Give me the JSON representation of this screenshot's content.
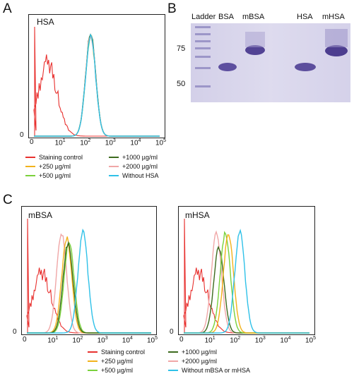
{
  "panels": {
    "A": {
      "letter": "A",
      "title": "HSA",
      "y_zero": "0",
      "x_ticks": [
        "0",
        "10",
        "10",
        "10",
        "10",
        "10"
      ],
      "x_tick_exps": [
        "",
        "1",
        "2",
        "3",
        "4",
        "5"
      ],
      "legend": [
        {
          "label": "Staining control",
          "color": "#e8312f"
        },
        {
          "label": "+1000 µg/ml",
          "color": "#3d6b1e"
        },
        {
          "label": "+250 µg/ml",
          "color": "#f2b21b"
        },
        {
          "label": "+2000 µg/ml",
          "color": "#f0a7a7"
        },
        {
          "label": "+500 µg/ml",
          "color": "#7ad13c"
        },
        {
          "label": "Without HSA",
          "color": "#2fc1e8"
        }
      ]
    },
    "B": {
      "letter": "B",
      "lane_labels": [
        "Ladder",
        "BSA",
        "mBSA",
        "HSA",
        "mHSA"
      ],
      "mw_markers": [
        "75",
        "50"
      ]
    },
    "C": {
      "letter": "C",
      "left_title": "mBSA",
      "right_title": "mHSA",
      "y_zero": "0",
      "x_ticks": [
        "0",
        "10",
        "10",
        "10",
        "10",
        "10"
      ],
      "x_tick_exps": [
        "",
        "1",
        "2",
        "3",
        "4",
        "5"
      ],
      "legend": [
        {
          "label": "Staining control",
          "color": "#e8312f"
        },
        {
          "label": "+1000 µg/ml",
          "color": "#3d6b1e"
        },
        {
          "label": "+250 µg/ml",
          "color": "#f2b21b"
        },
        {
          "label": "+2000 µg/ml",
          "color": "#f0a7a7"
        },
        {
          "label": "+500 µg/ml",
          "color": "#7ad13c"
        },
        {
          "label": "Without mBSA or mHSA",
          "color": "#2fc1e8"
        }
      ]
    }
  },
  "chart_data": [
    {
      "type": "line",
      "panel": "A",
      "title": "HSA",
      "xscale": "log",
      "xlim": [
        1,
        100000
      ],
      "series": [
        {
          "name": "Staining control",
          "color": "#e8312f",
          "peak_x": 3.5,
          "rel_height": 0.7
        },
        {
          "name": "+250 µg/ml",
          "color": "#f2b21b",
          "peak_x": 180,
          "rel_height": 0.98
        },
        {
          "name": "+500 µg/ml",
          "color": "#7ad13c",
          "peak_x": 180,
          "rel_height": 0.98
        },
        {
          "name": "+1000 µg/ml",
          "color": "#3d6b1e",
          "peak_x": 180,
          "rel_height": 1.0
        },
        {
          "name": "+2000 µg/ml",
          "color": "#f0a7a7",
          "peak_x": 180,
          "rel_height": 0.98
        },
        {
          "name": "Without HSA",
          "color": "#2fc1e8",
          "peak_x": 180,
          "rel_height": 0.97
        }
      ]
    },
    {
      "type": "line",
      "panel": "C-left",
      "title": "mBSA",
      "xscale": "log",
      "xlim": [
        1,
        100000
      ],
      "series": [
        {
          "name": "Staining control",
          "color": "#e8312f",
          "peak_x": 4,
          "rel_height": 0.55
        },
        {
          "name": "+2000 µg/ml",
          "color": "#f0a7a7",
          "peak_x": 25,
          "rel_height": 0.93
        },
        {
          "name": "+250 µg/ml",
          "color": "#f2b21b",
          "peak_x": 40,
          "rel_height": 0.88
        },
        {
          "name": "+500 µg/ml",
          "color": "#7ad13c",
          "peak_x": 50,
          "rel_height": 0.85
        },
        {
          "name": "+1000 µg/ml",
          "color": "#3d6b1e",
          "peak_x": 45,
          "rel_height": 0.83
        },
        {
          "name": "Without mBSA or mHSA",
          "color": "#2fc1e8",
          "peak_x": 180,
          "rel_height": 0.94
        }
      ]
    },
    {
      "type": "line",
      "panel": "C-right",
      "title": "mHSA",
      "xscale": "log",
      "xlim": [
        1,
        100000
      ],
      "series": [
        {
          "name": "Staining control",
          "color": "#e8312f",
          "peak_x": 4,
          "rel_height": 0.55
        },
        {
          "name": "+2000 µg/ml",
          "color": "#f0a7a7",
          "peak_x": 20,
          "rel_height": 0.93
        },
        {
          "name": "+1000 µg/ml",
          "color": "#3d6b1e",
          "peak_x": 25,
          "rel_height": 0.8
        },
        {
          "name": "+500 µg/ml",
          "color": "#7ad13c",
          "peak_x": 45,
          "rel_height": 0.93
        },
        {
          "name": "+250 µg/ml",
          "color": "#f2b21b",
          "peak_x": 60,
          "rel_height": 0.92
        },
        {
          "name": "Without mBSA or mHSA",
          "color": "#2fc1e8",
          "peak_x": 170,
          "rel_height": 0.94
        }
      ]
    }
  ]
}
